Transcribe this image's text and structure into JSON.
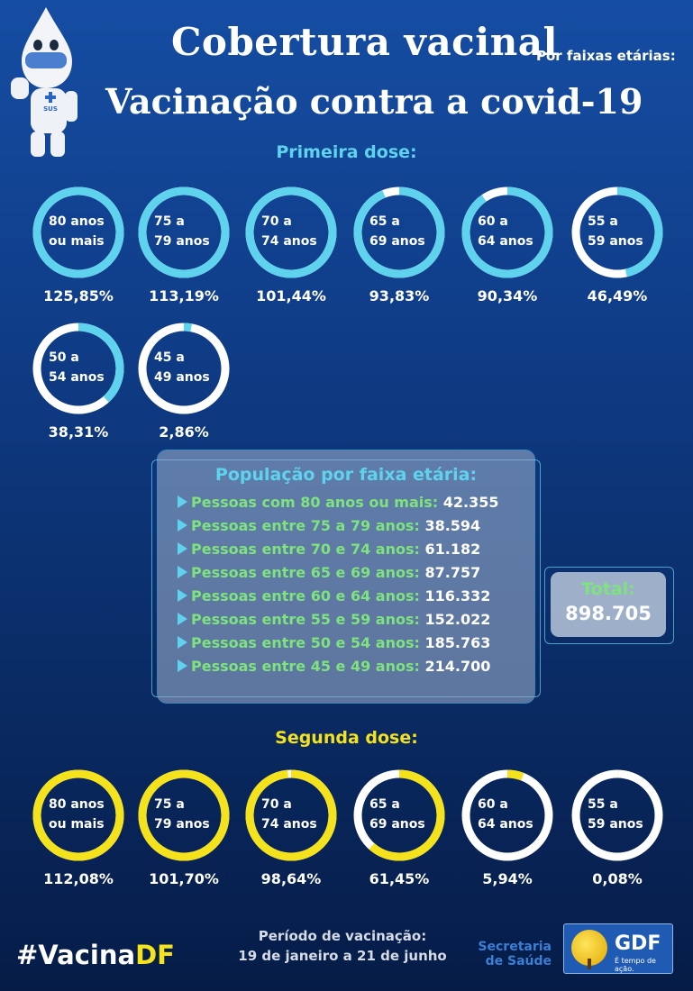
{
  "header": {
    "title": "Cobertura vacinal",
    "subtitle": "Por faixas etárias:",
    "title2": "Vacinação contra a covid-19"
  },
  "first_dose": {
    "heading": "Primeira dose:",
    "ring_color": "#5fd3ee",
    "items": [
      {
        "line1": "80 anos",
        "line2": "ou mais",
        "pct": "125,85%",
        "fraction": 1.0
      },
      {
        "line1": "75 a",
        "line2": "79 anos",
        "pct": "113,19%",
        "fraction": 1.0
      },
      {
        "line1": "70 a",
        "line2": "74 anos",
        "pct": "101,44%",
        "fraction": 1.0
      },
      {
        "line1": "65 a",
        "line2": "69 anos",
        "pct": "93,83%",
        "fraction": 0.9383
      },
      {
        "line1": "60 a",
        "line2": "64 anos",
        "pct": "90,34%",
        "fraction": 0.9034
      },
      {
        "line1": "55 a",
        "line2": "59 anos",
        "pct": "46,49%",
        "fraction": 0.4649
      },
      {
        "line1": "50 a",
        "line2": "54 anos",
        "pct": "38,31%",
        "fraction": 0.3831
      },
      {
        "line1": "45 a",
        "line2": "49 anos",
        "pct": "2,86%",
        "fraction": 0.0286
      }
    ]
  },
  "population": {
    "title": "População por faixa etária:",
    "rows": [
      {
        "label": "Pessoas com 80 anos ou mais:",
        "value": "42.355"
      },
      {
        "label": "Pessoas entre 75 a 79 anos:",
        "value": "38.594"
      },
      {
        "label": "Pessoas entre 70 e 74 anos:",
        "value": "61.182"
      },
      {
        "label": "Pessoas entre 65 e 69 anos:",
        "value": "87.757"
      },
      {
        "label": "Pessoas entre 60 e 64 anos:",
        "value": "116.332"
      },
      {
        "label": "Pessoas entre 55 e 59 anos:",
        "value": "152.022"
      },
      {
        "label": "Pessoas entre 50 e 54 anos:",
        "value": "185.763"
      },
      {
        "label": "Pessoas entre 45 e 49 anos:",
        "value": "214.700"
      }
    ],
    "total_label": "Total:",
    "total_value": "898.705"
  },
  "second_dose": {
    "heading": "Segunda dose:",
    "ring_color": "#f4e21c",
    "items": [
      {
        "line1": "80 anos",
        "line2": "ou mais",
        "pct": "112,08%",
        "fraction": 1.0
      },
      {
        "line1": "75 a",
        "line2": "79 anos",
        "pct": "101,70%",
        "fraction": 1.0
      },
      {
        "line1": "70 a",
        "line2": "74 anos",
        "pct": "98,64%",
        "fraction": 0.9864
      },
      {
        "line1": "65 a",
        "line2": "69 anos",
        "pct": "61,45%",
        "fraction": 0.6145
      },
      {
        "line1": "60 a",
        "line2": "64 anos",
        "pct": "5,94%",
        "fraction": 0.0594
      },
      {
        "line1": "55 a",
        "line2": "59 anos",
        "pct": "0,08%",
        "fraction": 0.0008
      }
    ]
  },
  "footer": {
    "hashtag_prefix": "#Vacina",
    "hashtag_suffix": "DF",
    "periodo_label": "Período de vacinação:",
    "periodo_dates": "19 de janeiro a 21 de junho",
    "secretaria_line1": "Secretaria",
    "secretaria_line2": "de Saúde",
    "gdf_name": "GDF",
    "gdf_slogan": "É tempo de ação.",
    "mascot_badge": "SUS"
  }
}
